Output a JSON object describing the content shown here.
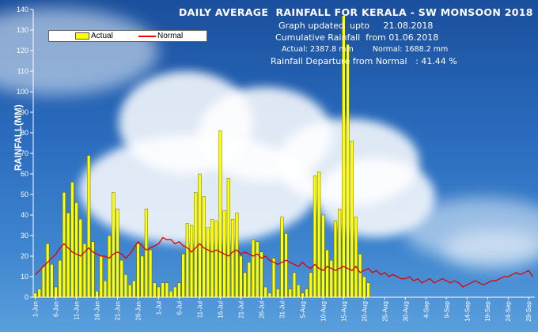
{
  "colors": {
    "actual_bar": "#ffff00",
    "actual_bar_stroke": "#4d4d00",
    "normal_line": "#e00000",
    "axis": "#ffffff",
    "text": "#ffffff"
  },
  "header": {
    "title": "DAILY AVERAGE  RAINFALL FOR KERALA - SW MONSOON 2018",
    "line1": "Graph updated  upto     21.08.2018",
    "line2": "Cumulative Rainfall  from 01.06.2018",
    "line3": "Actual: 2387.8 mm        Normal: 1688.2 mm",
    "line4": "Rainfall Departure from Normal   : 41.44 %"
  },
  "legend": {
    "actual": "Actual",
    "normal": "Normal"
  },
  "chart_data": {
    "type": "bar",
    "title": "DAILY AVERAGE  RAINFALL FOR KERALA - SW MONSOON 2018",
    "ylabel": "RAINFALL(MM)",
    "xlabel": "",
    "ylim": [
      0,
      140
    ],
    "yticks": [
      0,
      10,
      20,
      30,
      40,
      50,
      60,
      70,
      80,
      90,
      100,
      110,
      120,
      130,
      140
    ],
    "x_tick_labels": [
      "1-Jun",
      "6-Jun",
      "11-Jun",
      "16-Jun",
      "21-Jun",
      "26-Jun",
      "1-Jul",
      "6-Jul",
      "11-Jul",
      "16-Jul",
      "21-Jul",
      "26-Jul",
      "31-Jul",
      "5-Aug",
      "10-Aug",
      "15-Aug",
      "20-Aug",
      "25-Aug",
      "30-Aug",
      "4-Sep",
      "9-Sep",
      "14-Sep",
      "19-Sep",
      "24-Sep",
      "29-Sep"
    ],
    "x_start": "1-Jun",
    "day_count": 122,
    "series": [
      {
        "name": "Actual",
        "type": "bar",
        "values": [
          2,
          4,
          15,
          26,
          16,
          5,
          18,
          51,
          41,
          56,
          46,
          38,
          26,
          69,
          27,
          3,
          20,
          8,
          30,
          51,
          43,
          18,
          11,
          6,
          8,
          26,
          20,
          43,
          23,
          7,
          5,
          7,
          7,
          3,
          5,
          7,
          21,
          36,
          35,
          51,
          60,
          49,
          34,
          38,
          37,
          81,
          42,
          58,
          38,
          41,
          20,
          12,
          17,
          28,
          27,
          22,
          5,
          2,
          19,
          4,
          39,
          31,
          4,
          12,
          6,
          2,
          4,
          12,
          59,
          61,
          40,
          23,
          18,
          37,
          43,
          137,
          123,
          76,
          39,
          21,
          10,
          7
        ]
      },
      {
        "name": "Normal",
        "type": "line",
        "values": [
          11,
          13,
          15,
          17,
          19,
          21,
          24,
          26,
          24,
          22,
          21,
          20,
          22,
          24,
          22,
          21,
          20,
          20,
          19,
          21,
          22,
          21,
          19,
          21,
          24,
          27,
          25,
          23,
          24,
          25,
          26,
          29,
          28,
          28,
          26,
          27,
          25,
          24,
          22,
          24,
          26,
          24,
          23,
          22,
          23,
          22,
          21,
          20,
          22,
          23,
          21,
          22,
          21,
          20,
          21,
          19,
          20,
          18,
          17,
          16,
          17,
          18,
          17,
          16,
          15,
          17,
          15,
          14,
          16,
          14,
          13,
          15,
          14,
          13,
          14,
          15,
          14,
          13,
          15,
          12,
          13,
          14,
          12,
          13,
          11,
          12,
          10,
          11,
          10,
          9,
          9,
          10,
          8,
          9,
          7,
          8,
          9,
          7,
          8,
          9,
          8,
          7,
          8,
          7,
          5,
          6,
          7,
          8,
          7,
          6,
          7,
          8,
          8,
          9,
          10,
          10,
          11,
          12,
          11,
          12,
          13,
          10
        ]
      }
    ]
  }
}
